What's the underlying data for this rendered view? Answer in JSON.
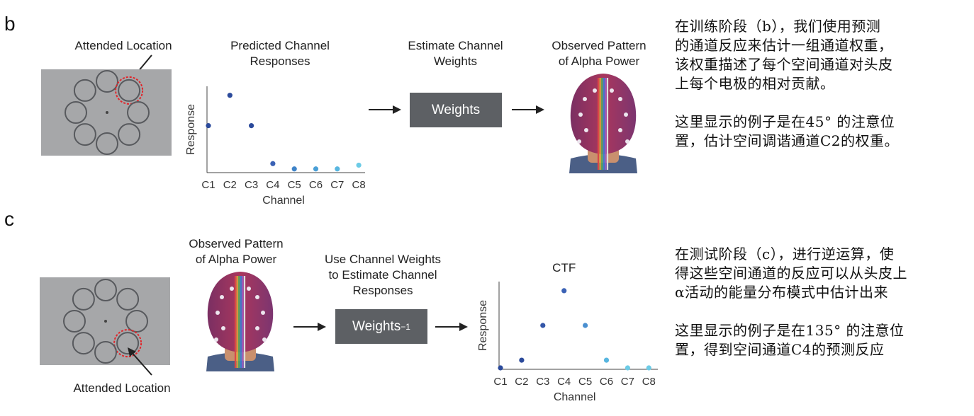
{
  "panel_b": {
    "letter": "b",
    "attended_label": "Attended Location",
    "predicted_title": [
      "Predicted Channel",
      "Responses"
    ],
    "estimate_title": [
      "Estimate Channel",
      "Weights"
    ],
    "weights_label": "Weights",
    "observed_title": [
      "Observed Pattern",
      "of Alpha Power"
    ],
    "attended_index": 1
  },
  "panel_c": {
    "letter": "c",
    "attended_label": "Attended Location",
    "observed_title": [
      "Observed Pattern",
      "of Alpha Power"
    ],
    "use_title": [
      "Use Channel Weights",
      "to Estimate Channel",
      "Responses"
    ],
    "weights_inv_label": "Weights",
    "weights_inv_sup": "−1",
    "attended_index": 3
  },
  "chart_data": [
    {
      "type": "scatter",
      "title": "",
      "xlabel": "Channel",
      "ylabel": "Response",
      "categories": [
        "C1",
        "C2",
        "C3",
        "C4",
        "C5",
        "C6",
        "C7",
        "C8"
      ],
      "values": [
        0.6,
        1.0,
        0.6,
        0.1,
        0.03,
        0.03,
        0.03,
        0.08
      ],
      "ylim": [
        0,
        1.1
      ],
      "point_colors": [
        "#2b4a9b",
        "#2b4a9b",
        "#2b4a9b",
        "#3b62b5",
        "#3f83c8",
        "#4a9fd6",
        "#58b6e0",
        "#6ccbe6"
      ]
    },
    {
      "type": "scatter",
      "title": "CTF",
      "xlabel": "Channel",
      "ylabel": "Response",
      "categories": [
        "C1",
        "C2",
        "C3",
        "C4",
        "C5",
        "C6",
        "C7",
        "C8"
      ],
      "values": [
        0.0,
        0.1,
        0.55,
        1.0,
        0.55,
        0.1,
        0.0,
        0.0
      ],
      "ylim": [
        0,
        1.1
      ],
      "point_colors": [
        "#2b4a9b",
        "#2b4a9b",
        "#3456a8",
        "#3b62b5",
        "#4a8fd0",
        "#58b6e0",
        "#6ccbe6",
        "#6ccbe6"
      ]
    }
  ],
  "notes": {
    "b_para1": [
      "在训练阶段（b），我们使用预测",
      "的通道反应来估计一组通道权重，",
      "该权重描述了每个空间通道对头皮",
      "上每个电极的相对贡献。"
    ],
    "b_para2": [
      "这里显示的例子是在45° 的注意位",
      "置，估计空间调谐通道C2的权重。"
    ],
    "c_para1": [
      "在测试阶段（c），进行逆运算，使",
      "得这些空间通道的反应可以从头皮上",
      "α活动的能量分布模式中估计出来"
    ],
    "c_para2": [
      "这里显示的例子是在135° 的注意位",
      "置，得到空间通道C4的预测反应"
    ]
  },
  "colors": {
    "box_grey": "#a6a7a9",
    "weights_box": "#5d6064",
    "attended_ring": "#e0262b"
  },
  "icons": {
    "head": "eeg-cap-head",
    "arrow": "right-arrow"
  }
}
